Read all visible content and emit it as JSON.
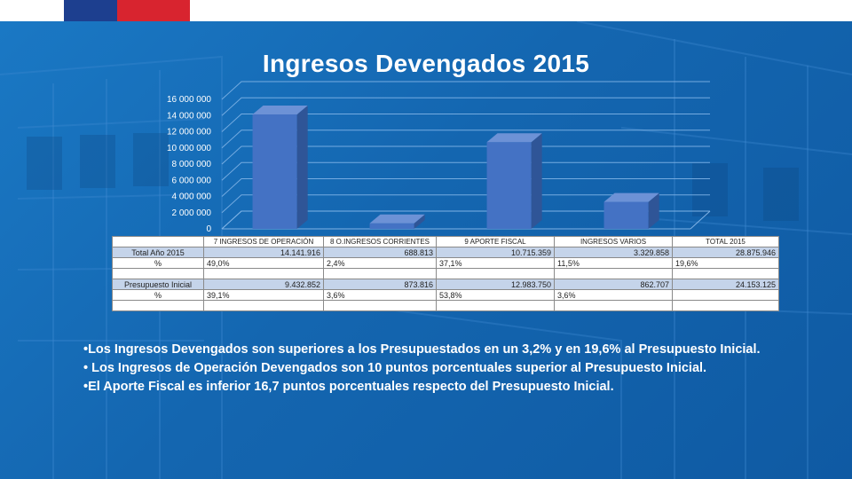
{
  "title": "Ingresos Devengados 2015",
  "colors": {
    "bar": "#4472c4",
    "bar_side": "#2f5597",
    "bar_top": "#6d92d6",
    "background": "#1466b0",
    "accent_blue": "#1d3f8f",
    "accent_red": "#d8242f"
  },
  "chart_data": {
    "type": "bar",
    "categories": [
      "7 INGRESOS DE OPERACIÓN",
      "8 O.INGRESOS CORRIENTES",
      "9 APORTE FISCAL",
      "INGRESOS VARIOS"
    ],
    "values": [
      14141916,
      688813,
      10715359,
      3329858
    ],
    "ylim": [
      0,
      16000000
    ],
    "yticks": [
      0,
      2000000,
      4000000,
      6000000,
      8000000,
      10000000,
      12000000,
      14000000,
      16000000
    ],
    "ytick_labels": [
      "0",
      "2 000 000",
      "4 000 000",
      "6 000 000",
      "8 000 000",
      "10 000 000",
      "12 000 000",
      "14 000 000",
      "16 000 000"
    ],
    "grid": true,
    "three_d": true
  },
  "table": {
    "headers": [
      "",
      "7 INGRESOS DE OPERACIÓN",
      "8 O.INGRESOS CORRIENTES",
      "9 APORTE FISCAL",
      "INGRESOS VARIOS",
      "TOTAL 2015"
    ],
    "rows": [
      {
        "label": "Total Año 2015",
        "cells": [
          "14.141.916",
          "688.813",
          "10.715.359",
          "3.329.858",
          "28.875.946"
        ],
        "kind": "num"
      },
      {
        "label": "%",
        "cells": [
          "49,0%",
          "2,4%",
          "37,1%",
          "11,5%",
          "19,6%"
        ],
        "kind": "pct"
      },
      {
        "label": "",
        "cells": [
          "",
          "",
          "",
          "",
          ""
        ],
        "kind": "pct"
      },
      {
        "label": "Presupuesto Inicial",
        "cells": [
          "9.432.852",
          "873.816",
          "12.983.750",
          "862.707",
          "24.153.125"
        ],
        "kind": "num"
      },
      {
        "label": "%",
        "cells": [
          "39,1%",
          "3,6%",
          "53,8%",
          "3,6%",
          ""
        ],
        "kind": "pct"
      },
      {
        "label": "",
        "cells": [
          "",
          "",
          "",
          "",
          ""
        ],
        "kind": "pct"
      }
    ]
  },
  "bullets": [
    "•Los Ingresos Devengados son superiores a los Presupuestados en un 3,2% y en 19,6% al Presupuesto Inicial.",
    "• Los Ingresos de Operación Devengados son 10 puntos porcentuales superior al Presupuesto Inicial.",
    "•El Aporte Fiscal es inferior 16,7 puntos porcentuales respecto del Presupuesto Inicial."
  ]
}
